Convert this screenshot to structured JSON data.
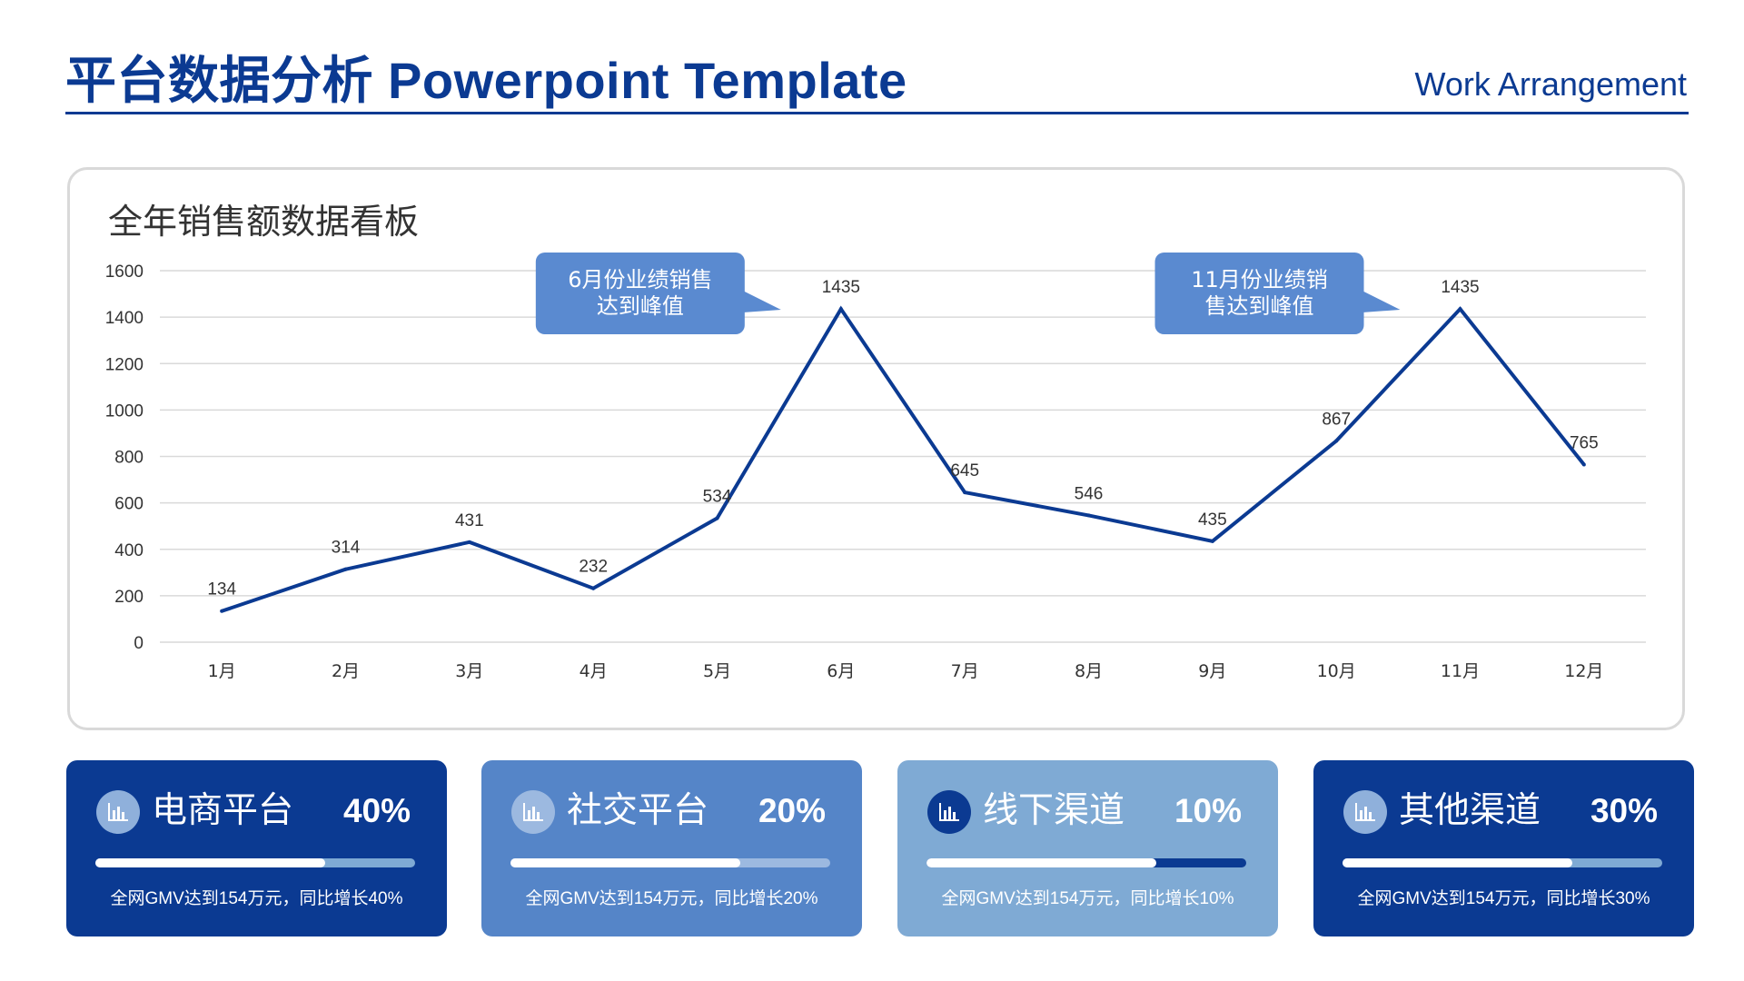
{
  "header": {
    "title": "平台数据分析 Powerpoint Template",
    "subtitle": "Work Arrangement"
  },
  "panel": {
    "title": "全年销售额数据看板"
  },
  "colors": {
    "primary": "#0b3a92",
    "medium": "#5585c8",
    "light": "#7faad4",
    "grid": "#d9d9d9",
    "callout": "#5a8ad0"
  },
  "chart_data": {
    "type": "line",
    "categories": [
      "1月",
      "2月",
      "3月",
      "4月",
      "5月",
      "6月",
      "7月",
      "8月",
      "9月",
      "10月",
      "11月",
      "12月"
    ],
    "series": [
      {
        "values": [
          134,
          314,
          431,
          232,
          534,
          1435,
          645,
          546,
          435,
          867,
          1435,
          765
        ]
      }
    ],
    "ylim": [
      0,
      1600
    ],
    "yticks": [
      0,
      200,
      400,
      600,
      800,
      1000,
      1200,
      1400,
      1600
    ],
    "grid": true,
    "data_labels": true,
    "annotations": [
      {
        "text_lines": [
          "6月份业绩销售",
          "达到峰值"
        ],
        "category": "6月"
      },
      {
        "text_lines": [
          "11月份业绩销",
          "售达到峰值"
        ],
        "category": "11月"
      }
    ]
  },
  "cards": [
    {
      "label": "电商平台",
      "percent": "40%",
      "progress": 0.72,
      "desc": "全网GMV达到154万元，同比增长40%",
      "bg": "#0b3a92",
      "icon_bg": "#8fb0db",
      "track": "#7faad4",
      "icon": "bar-chart-icon"
    },
    {
      "label": "社交平台",
      "percent": "20%",
      "progress": 0.72,
      "desc": "全网GMV达到154万元，同比增长20%",
      "bg": "#5585c8",
      "icon_bg": "#9cb9e0",
      "track": "#9cb9e0",
      "icon": "bar-chart-icon"
    },
    {
      "label": "线下渠道",
      "percent": "10%",
      "progress": 0.72,
      "desc": "全网GMV达到154万元，同比增长10%",
      "bg": "#7faad4",
      "icon_bg": "#0b3a92",
      "track": "#0b3a92",
      "icon": "bar-chart-icon"
    },
    {
      "label": "其他渠道",
      "percent": "30%",
      "progress": 0.72,
      "desc": "全网GMV达到154万元，同比增长30%",
      "bg": "#0b3a92",
      "icon_bg": "#8fb0db",
      "track": "#7faad4",
      "icon": "bar-chart-icon"
    }
  ]
}
